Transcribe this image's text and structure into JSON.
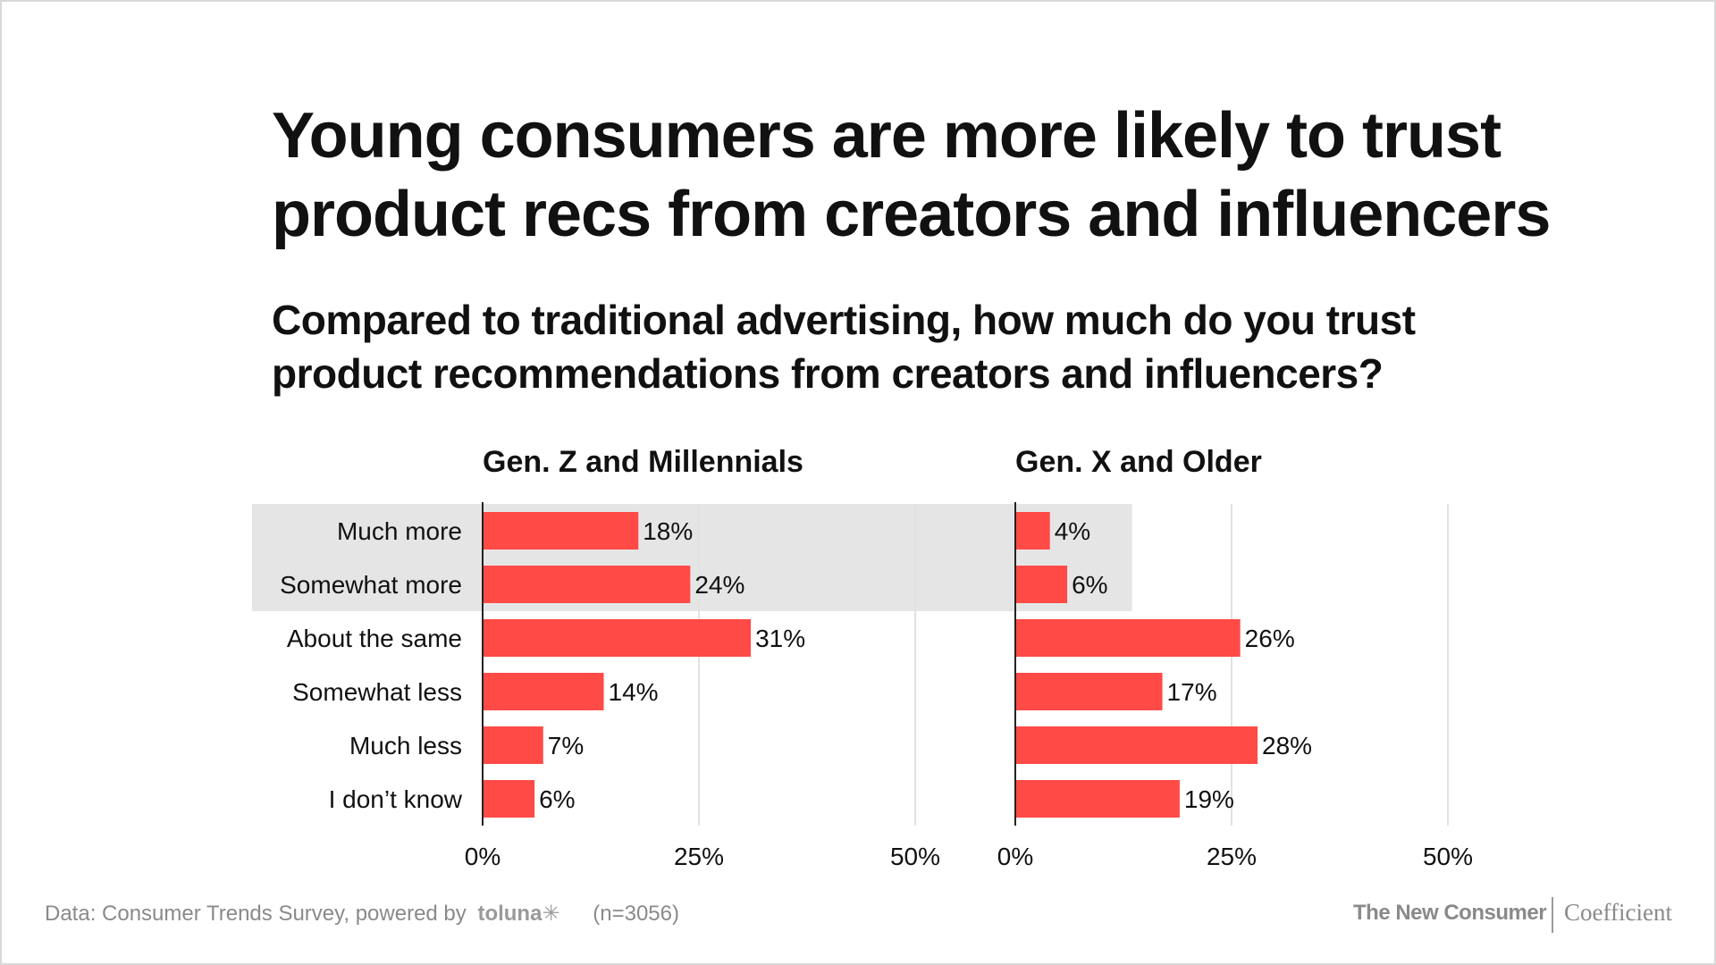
{
  "header": {
    "title_line1": "Young consumers are more likely to trust",
    "title_line2": "product recs from creators and influencers",
    "subtitle_line1": "Compared to traditional advertising, how much do you trust",
    "subtitle_line2": "product recommendations from creators and influencers?"
  },
  "footer": {
    "source": "Data: Consumer Trends Survey, powered by",
    "source_brand": "toluna",
    "source_brand_mark": "✳",
    "sample": "(n=3056)",
    "brand_left": "The New Consumer",
    "brand_right": "Coefficient"
  },
  "colors": {
    "bar": "#ff4a46",
    "highlight": "#e5e5e5",
    "grid": "#e2e2e2",
    "axis": "#222222",
    "text": "#111111"
  },
  "chart_data": {
    "type": "bar",
    "orientation": "horizontal",
    "categories": [
      "Much more",
      "Somewhat more",
      "About the same",
      "Somewhat less",
      "Much less",
      "I don’t know"
    ],
    "highlighted_categories": [
      "Much more",
      "Somewhat more"
    ],
    "xlim": [
      0,
      50
    ],
    "xticks": [
      0,
      25,
      50
    ],
    "xtick_labels": [
      "0%",
      "25%",
      "50%"
    ],
    "value_suffix": "%",
    "panels": [
      {
        "name": "Gen. Z and Millennials",
        "values": [
          18,
          24,
          31,
          14,
          7,
          6
        ]
      },
      {
        "name": "Gen. X and Older",
        "values": [
          4,
          6,
          26,
          17,
          28,
          19
        ]
      }
    ]
  }
}
